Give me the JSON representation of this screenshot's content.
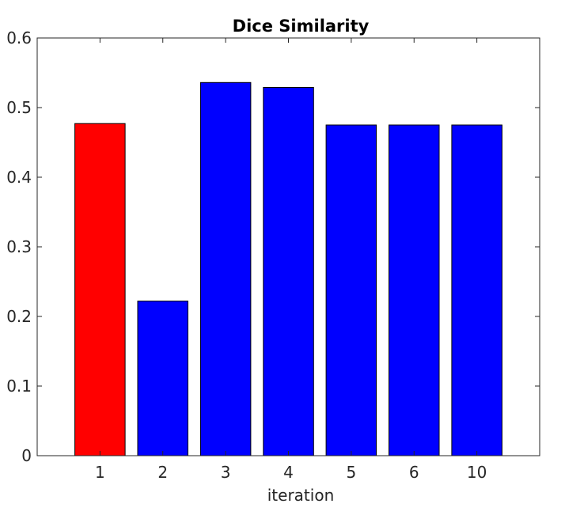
{
  "chart_data": {
    "type": "bar",
    "title": "Dice Similarity",
    "xlabel": "iteration",
    "ylabel": "",
    "categories": [
      "1",
      "2",
      "3",
      "4",
      "5",
      "6",
      "10"
    ],
    "values": [
      0.477,
      0.222,
      0.536,
      0.529,
      0.475,
      0.475,
      0.475
    ],
    "bar_colors": [
      "#ff0000",
      "#0000ff",
      "#0000ff",
      "#0000ff",
      "#0000ff",
      "#0000ff",
      "#0000ff"
    ],
    "ylim": [
      0,
      0.6
    ],
    "yticks": [
      0,
      0.1,
      0.2,
      0.3,
      0.4,
      0.5,
      0.6
    ],
    "ytick_labels": [
      "0",
      "0.1",
      "0.2",
      "0.3",
      "0.4",
      "0.5",
      "0.6"
    ],
    "grid": false,
    "box": true
  }
}
